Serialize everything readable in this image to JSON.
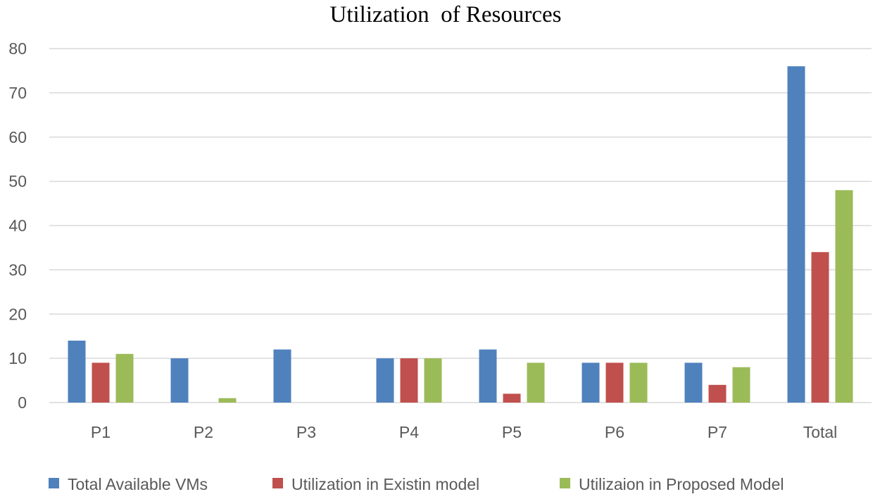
{
  "chart_data": {
    "type": "bar",
    "title": "Utilization  of Resources",
    "xlabel": "",
    "ylabel": "",
    "categories": [
      "P1",
      "P2",
      "P3",
      "P4",
      "P5",
      "P6",
      "P7",
      "Total"
    ],
    "series": [
      {
        "name": "Total Available VMs",
        "color": "#4f81bd",
        "values": [
          14,
          10,
          12,
          10,
          12,
          9,
          9,
          76
        ]
      },
      {
        "name": "Utilization in Existin model",
        "color": "#c0504d",
        "values": [
          9,
          0,
          0,
          10,
          2,
          9,
          4,
          34
        ]
      },
      {
        "name": "Utilizaion in Proposed Model",
        "color": "#9bbb59",
        "values": [
          11,
          1,
          0,
          10,
          9,
          9,
          8,
          48
        ]
      }
    ],
    "ylim": [
      0,
      80
    ],
    "yticks": [
      0,
      10,
      20,
      30,
      40,
      50,
      60,
      70,
      80
    ],
    "grid": true,
    "legend_position": "bottom"
  }
}
